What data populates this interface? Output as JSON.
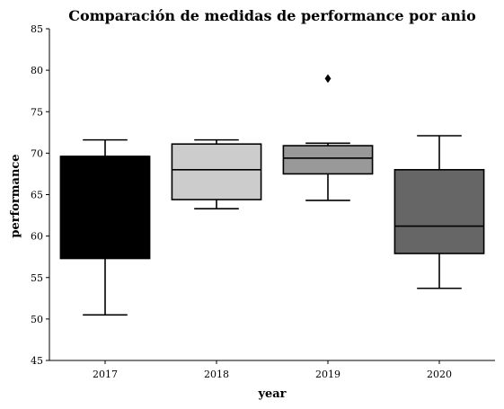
{
  "chart_data": {
    "type": "box",
    "title": "Comparación de medidas de performance por anio",
    "xlabel": "year",
    "ylabel": "performance",
    "ylim": [
      45,
      85
    ],
    "yticks": [
      45,
      50,
      55,
      60,
      65,
      70,
      75,
      80,
      85
    ],
    "categories": [
      "2017",
      "2018",
      "2019",
      "2020"
    ],
    "boxes": [
      {
        "category": "2017",
        "whisker_low": 50.5,
        "q1": 57.3,
        "median": 69.6,
        "q3": 69.6,
        "whisker_high": 71.6,
        "fliers": [],
        "color": "#000000"
      },
      {
        "category": "2018",
        "whisker_low": 63.3,
        "q1": 64.4,
        "median": 68.0,
        "q3": 71.1,
        "whisker_high": 71.6,
        "fliers": [],
        "color": "#cccccc"
      },
      {
        "category": "2019",
        "whisker_low": 64.3,
        "q1": 67.5,
        "median": 69.4,
        "q3": 70.9,
        "whisker_high": 71.2,
        "fliers": [
          79.0
        ],
        "color": "#999999"
      },
      {
        "category": "2020",
        "whisker_low": 53.7,
        "q1": 57.9,
        "median": 61.2,
        "q3": 68.0,
        "whisker_high": 72.1,
        "fliers": [],
        "color": "#666666"
      }
    ],
    "grid": false
  }
}
